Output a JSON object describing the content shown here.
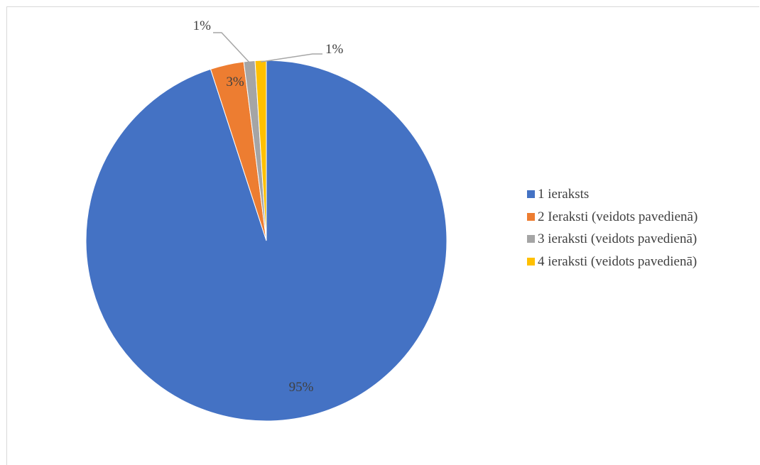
{
  "chart_data": {
    "type": "pie",
    "title": "",
    "categories": [
      "1 ieraksts",
      "2 Ieraksti (veidots pavedienā)",
      "3 ieraksti (veidots pavedienā)",
      "4 ieraksti (veidots pavedienā)"
    ],
    "values": [
      95,
      3,
      1,
      1
    ],
    "data_labels": [
      "95%",
      "3%",
      "1%",
      "1%"
    ],
    "colors": [
      "#4472C4",
      "#ED7D31",
      "#A5A5A5",
      "#FFC000"
    ],
    "legend_position": "right",
    "start_angle": "top",
    "direction": "clockwise"
  }
}
